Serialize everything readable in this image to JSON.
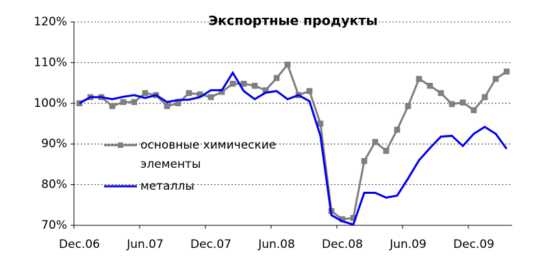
{
  "chart_data": {
    "type": "line",
    "title": "Экспортные продукты",
    "categories": [
      "Dec.06",
      null,
      null,
      null,
      null,
      null,
      "Jun.07",
      null,
      null,
      null,
      null,
      null,
      "Dec.07",
      null,
      null,
      null,
      null,
      null,
      "Jun.08",
      null,
      null,
      null,
      null,
      null,
      "Dec.08",
      null,
      null,
      null,
      null,
      null,
      "Jun.09",
      null,
      null,
      null,
      null,
      null,
      "Dec.09",
      null,
      null,
      null
    ],
    "series": [
      {
        "name": "основные химические элементы",
        "color": "#808080",
        "marker": "square",
        "values": [
          100,
          101.5,
          101.5,
          99.3,
          100.3,
          100.3,
          102.5,
          102,
          99.3,
          100,
          102.5,
          102.2,
          101.5,
          102.8,
          104.8,
          104.8,
          104.3,
          103.2,
          106.2,
          109.5,
          102,
          103,
          95,
          73.5,
          71.5,
          71.8,
          85.8,
          90.5,
          88.3,
          93.5,
          99.3,
          106,
          104.3,
          102.5,
          99.8,
          100.2,
          98.3,
          101.5,
          106,
          107.8
        ]
      },
      {
        "name": "металлы",
        "color": "#0000ee",
        "values": [
          100,
          101.5,
          101.5,
          101,
          101.6,
          102,
          101.3,
          102,
          100.3,
          100.8,
          100.9,
          101.5,
          103.2,
          103.2,
          107.5,
          103,
          101,
          102.6,
          103,
          101,
          102,
          100.5,
          92,
          72.5,
          71,
          70.2,
          78,
          78,
          76.8,
          77.3,
          81.5,
          86,
          89,
          91.8,
          92,
          89.5,
          92.5,
          94.2,
          92.5,
          88.8
        ]
      }
    ],
    "ylim": [
      70,
      120
    ],
    "yticks": [
      {
        "value": 70,
        "label": "70%"
      },
      {
        "value": 80,
        "label": "80%"
      },
      {
        "value": 90,
        "label": "90%"
      },
      {
        "value": 100,
        "label": "100%"
      },
      {
        "value": 110,
        "label": "110%"
      },
      {
        "value": 120,
        "label": "120%"
      }
    ],
    "grid": true
  }
}
